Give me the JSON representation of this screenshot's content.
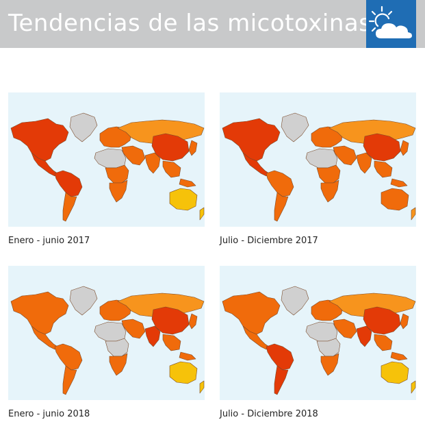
{
  "header": {
    "title": "Tendencias de las micotoxinas",
    "logo_icon": "sun-cloud-icon"
  },
  "colors": {
    "header_bg": "#c8c9ca",
    "logo_bg": "#1f6db4",
    "ocean": "#e6f4fa",
    "no_data": "#d0d0d0",
    "very_high": "#e33a07",
    "high": "#f06b0b",
    "medium": "#f7941d",
    "low": "#f6c20a"
  },
  "maps": [
    {
      "caption": "Enero - junio 2017",
      "regions": {
        "north_america": "very_high",
        "greenland": "no_data",
        "central_america": "very_high",
        "south_america_north": "very_high",
        "south_america_south": "high",
        "europe": "high",
        "russia": "medium",
        "middle_east": "high",
        "north_africa": "no_data",
        "central_africa": "high",
        "southern_africa": "high",
        "india": "high",
        "china": "very_high",
        "southeast_asia": "high",
        "japan": "high",
        "australia": "low",
        "new_zealand": "low"
      }
    },
    {
      "caption": "Julio - Diciembre 2017",
      "regions": {
        "north_america": "very_high",
        "greenland": "no_data",
        "central_america": "very_high",
        "south_america_north": "high",
        "south_america_south": "high",
        "europe": "high",
        "russia": "medium",
        "middle_east": "high",
        "north_africa": "no_data",
        "central_africa": "high",
        "southern_africa": "high",
        "india": "high",
        "china": "very_high",
        "southeast_asia": "high",
        "japan": "high",
        "australia": "high",
        "new_zealand": "medium"
      }
    },
    {
      "caption": "Enero - junio 2018",
      "regions": {
        "north_america": "high",
        "greenland": "no_data",
        "central_america": "high",
        "south_america_north": "high",
        "south_america_south": "high",
        "europe": "high",
        "russia": "medium",
        "middle_east": "high",
        "north_africa": "no_data",
        "central_africa": "no_data",
        "southern_africa": "high",
        "india": "very_high",
        "china": "very_high",
        "southeast_asia": "high",
        "japan": "high",
        "australia": "low",
        "new_zealand": "low"
      }
    },
    {
      "caption": "Julio - Diciembre 2018",
      "regions": {
        "north_america": "high",
        "greenland": "no_data",
        "central_america": "high",
        "south_america_north": "very_high",
        "south_america_south": "very_high",
        "europe": "high",
        "russia": "medium",
        "middle_east": "high",
        "north_africa": "no_data",
        "central_africa": "no_data",
        "southern_africa": "high",
        "india": "very_high",
        "china": "very_high",
        "southeast_asia": "high",
        "japan": "high",
        "australia": "low",
        "new_zealand": "low"
      }
    }
  ]
}
